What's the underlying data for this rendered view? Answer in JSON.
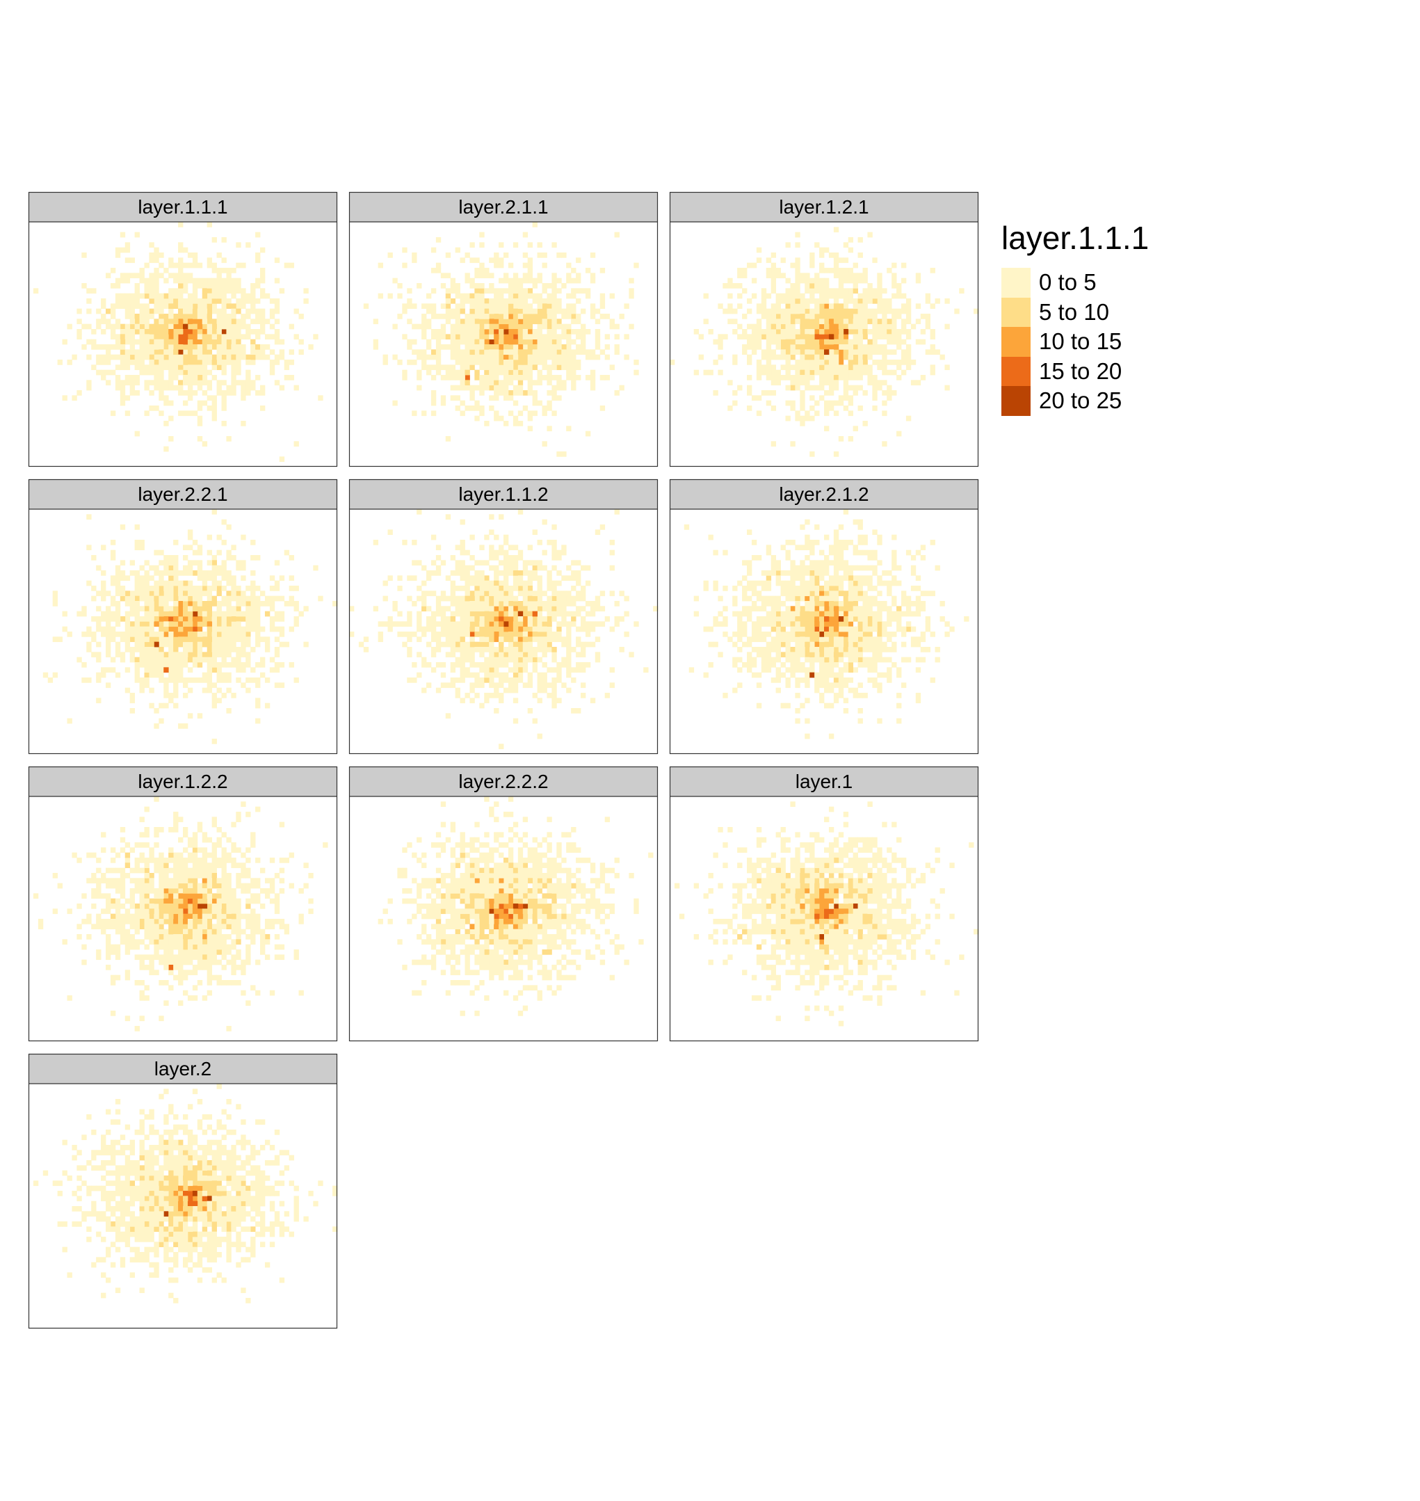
{
  "chart_data": {
    "type": "heatmap",
    "facet_grid": {
      "columns": 3,
      "rows": 4
    },
    "panels": [
      {
        "name": "layer.1.1.1",
        "seed": 11,
        "hot": [
          [
            0.5,
            0.42
          ],
          [
            0.62,
            0.43
          ],
          [
            0.48,
            0.52
          ]
        ]
      },
      {
        "name": "layer.2.1.1",
        "seed": 23,
        "hot": [
          [
            0.5,
            0.44
          ],
          [
            0.38,
            0.63
          ],
          [
            0.45,
            0.48
          ]
        ]
      },
      {
        "name": "layer.1.2.1",
        "seed": 37,
        "hot": [
          [
            0.52,
            0.45
          ],
          [
            0.57,
            0.43
          ],
          [
            0.5,
            0.52
          ]
        ]
      },
      {
        "name": "layer.2.2.1",
        "seed": 41,
        "hot": [
          [
            0.53,
            0.42
          ],
          [
            0.41,
            0.55
          ],
          [
            0.44,
            0.64
          ]
        ]
      },
      {
        "name": "layer.1.1.2",
        "seed": 53,
        "hot": [
          [
            0.55,
            0.42
          ],
          [
            0.5,
            0.45
          ],
          [
            0.6,
            0.41
          ]
        ]
      },
      {
        "name": "layer.2.1.2",
        "seed": 67,
        "hot": [
          [
            0.54,
            0.43
          ],
          [
            0.49,
            0.5
          ],
          [
            0.45,
            0.66
          ]
        ]
      },
      {
        "name": "layer.1.2.2",
        "seed": 79,
        "hot": [
          [
            0.54,
            0.44
          ],
          [
            0.45,
            0.68
          ],
          [
            0.57,
            0.43
          ]
        ]
      },
      {
        "name": "layer.2.2.2",
        "seed": 83,
        "hot": [
          [
            0.53,
            0.44
          ],
          [
            0.57,
            0.43
          ],
          [
            0.46,
            0.45
          ]
        ]
      },
      {
        "name": "layer.1",
        "seed": 97,
        "hot": [
          [
            0.53,
            0.43
          ],
          [
            0.48,
            0.57
          ],
          [
            0.6,
            0.44
          ]
        ]
      },
      {
        "name": "layer.2",
        "seed": 101,
        "hot": [
          [
            0.53,
            0.43
          ],
          [
            0.44,
            0.52
          ],
          [
            0.58,
            0.45
          ]
        ]
      }
    ],
    "legend": {
      "title": "layer.1.1.1",
      "position": "right",
      "bins": [
        {
          "label": "0 to 5",
          "min": 0,
          "max": 5,
          "color": "#FFF5C8"
        },
        {
          "label": "5 to 10",
          "min": 5,
          "max": 10,
          "color": "#FEDD88"
        },
        {
          "label": "10 to 15",
          "min": 10,
          "max": 15,
          "color": "#FCA53A"
        },
        {
          "label": "15 to 20",
          "min": 15,
          "max": 20,
          "color": "#EC6B19"
        },
        {
          "label": "20 to 25",
          "min": 20,
          "max": 25,
          "color": "#BA4403"
        }
      ]
    },
    "panel_background": "#FFFFFF",
    "strip_color": "#CCCCCC"
  }
}
